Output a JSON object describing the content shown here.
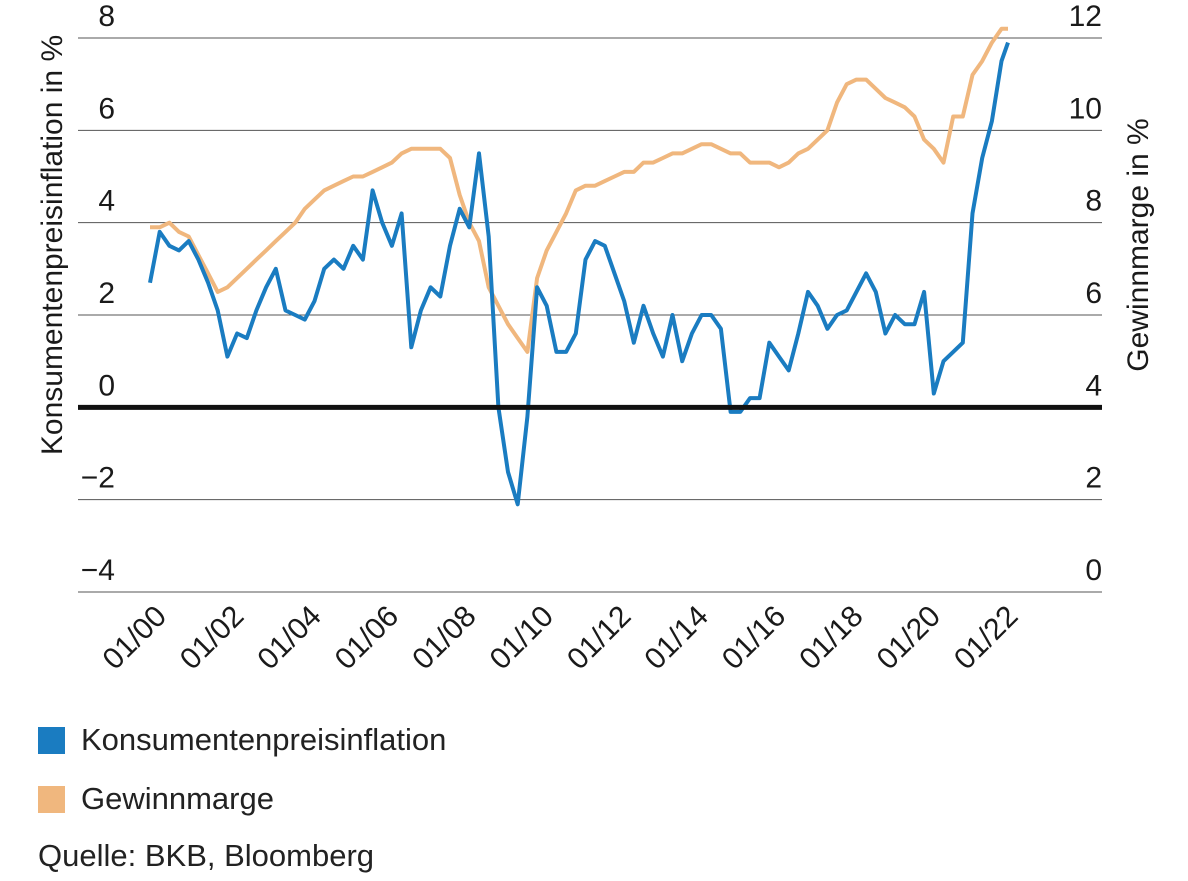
{
  "chart_data": {
    "type": "line",
    "x_tick_labels": [
      "01/00",
      "01/02",
      "01/04",
      "01/06",
      "01/08",
      "01/10",
      "01/12",
      "01/14",
      "01/16",
      "01/18",
      "01/20",
      "01/22"
    ],
    "xlim": [
      "2000-01",
      "2022-12"
    ],
    "y_left": {
      "label": "Konsumentenpreisinflation in %",
      "ticks": [
        "−4",
        "−2",
        "0",
        "2",
        "4",
        "6",
        "8"
      ],
      "ylim": [
        -4,
        8
      ]
    },
    "y_right": {
      "label": "Gewinnmarge in %",
      "ticks": [
        "0",
        "2",
        "4",
        "6",
        "8",
        "10",
        "12"
      ],
      "ylim": [
        0,
        12
      ]
    },
    "grid": "horizontal",
    "zero_line": true,
    "series": [
      {
        "name": "Konsumentenpreisinflation",
        "axis": "left",
        "color": "#1a7cc1",
        "points": [
          [
            "2000-01",
            2.7
          ],
          [
            "2000-04",
            3.8
          ],
          [
            "2000-07",
            3.5
          ],
          [
            "2000-10",
            3.4
          ],
          [
            "2001-01",
            3.6
          ],
          [
            "2001-04",
            3.2
          ],
          [
            "2001-07",
            2.7
          ],
          [
            "2001-10",
            2.1
          ],
          [
            "2002-01",
            1.1
          ],
          [
            "2002-04",
            1.6
          ],
          [
            "2002-07",
            1.5
          ],
          [
            "2002-10",
            2.1
          ],
          [
            "2003-01",
            2.6
          ],
          [
            "2003-04",
            3.0
          ],
          [
            "2003-07",
            2.1
          ],
          [
            "2003-10",
            2.0
          ],
          [
            "2004-01",
            1.9
          ],
          [
            "2004-04",
            2.3
          ],
          [
            "2004-07",
            3.0
          ],
          [
            "2004-10",
            3.2
          ],
          [
            "2005-01",
            3.0
          ],
          [
            "2005-04",
            3.5
          ],
          [
            "2005-07",
            3.2
          ],
          [
            "2005-10",
            4.7
          ],
          [
            "2006-01",
            4.0
          ],
          [
            "2006-04",
            3.5
          ],
          [
            "2006-07",
            4.2
          ],
          [
            "2006-10",
            1.3
          ],
          [
            "2007-01",
            2.1
          ],
          [
            "2007-04",
            2.6
          ],
          [
            "2007-07",
            2.4
          ],
          [
            "2007-10",
            3.5
          ],
          [
            "2008-01",
            4.3
          ],
          [
            "2008-04",
            3.9
          ],
          [
            "2008-07",
            5.5
          ],
          [
            "2008-10",
            3.7
          ],
          [
            "2009-01",
            0.0
          ],
          [
            "2009-04",
            -1.4
          ],
          [
            "2009-07",
            -2.1
          ],
          [
            "2009-10",
            -0.2
          ],
          [
            "2010-01",
            2.6
          ],
          [
            "2010-04",
            2.2
          ],
          [
            "2010-07",
            1.2
          ],
          [
            "2010-10",
            1.2
          ],
          [
            "2011-01",
            1.6
          ],
          [
            "2011-04",
            3.2
          ],
          [
            "2011-07",
            3.6
          ],
          [
            "2011-10",
            3.5
          ],
          [
            "2012-01",
            2.9
          ],
          [
            "2012-04",
            2.3
          ],
          [
            "2012-07",
            1.4
          ],
          [
            "2012-10",
            2.2
          ],
          [
            "2013-01",
            1.6
          ],
          [
            "2013-04",
            1.1
          ],
          [
            "2013-07",
            2.0
          ],
          [
            "2013-10",
            1.0
          ],
          [
            "2014-01",
            1.6
          ],
          [
            "2014-04",
            2.0
          ],
          [
            "2014-07",
            2.0
          ],
          [
            "2014-10",
            1.7
          ],
          [
            "2015-01",
            -0.1
          ],
          [
            "2015-04",
            -0.1
          ],
          [
            "2015-07",
            0.2
          ],
          [
            "2015-10",
            0.2
          ],
          [
            "2016-01",
            1.4
          ],
          [
            "2016-04",
            1.1
          ],
          [
            "2016-07",
            0.8
          ],
          [
            "2016-10",
            1.6
          ],
          [
            "2017-01",
            2.5
          ],
          [
            "2017-04",
            2.2
          ],
          [
            "2017-07",
            1.7
          ],
          [
            "2017-10",
            2.0
          ],
          [
            "2018-01",
            2.1
          ],
          [
            "2018-04",
            2.5
          ],
          [
            "2018-07",
            2.9
          ],
          [
            "2018-10",
            2.5
          ],
          [
            "2019-01",
            1.6
          ],
          [
            "2019-04",
            2.0
          ],
          [
            "2019-07",
            1.8
          ],
          [
            "2019-10",
            1.8
          ],
          [
            "2020-01",
            2.5
          ],
          [
            "2020-04",
            0.3
          ],
          [
            "2020-07",
            1.0
          ],
          [
            "2020-10",
            1.2
          ],
          [
            "2021-01",
            1.4
          ],
          [
            "2021-04",
            4.2
          ],
          [
            "2021-07",
            5.4
          ],
          [
            "2021-10",
            6.2
          ],
          [
            "2022-01",
            7.5
          ],
          [
            "2022-03",
            7.9
          ]
        ]
      },
      {
        "name": "Gewinnmarge",
        "axis": "right",
        "color": "#f0b77e",
        "points": [
          [
            "2000-01",
            7.9
          ],
          [
            "2000-04",
            7.9
          ],
          [
            "2000-07",
            8.0
          ],
          [
            "2000-10",
            7.8
          ],
          [
            "2001-01",
            7.7
          ],
          [
            "2001-04",
            7.3
          ],
          [
            "2001-07",
            6.9
          ],
          [
            "2001-10",
            6.5
          ],
          [
            "2002-01",
            6.6
          ],
          [
            "2002-04",
            6.8
          ],
          [
            "2002-07",
            7.0
          ],
          [
            "2002-10",
            7.2
          ],
          [
            "2003-01",
            7.4
          ],
          [
            "2003-04",
            7.6
          ],
          [
            "2003-07",
            7.8
          ],
          [
            "2003-10",
            8.0
          ],
          [
            "2004-01",
            8.3
          ],
          [
            "2004-04",
            8.5
          ],
          [
            "2004-07",
            8.7
          ],
          [
            "2004-10",
            8.8
          ],
          [
            "2005-01",
            8.9
          ],
          [
            "2005-04",
            9.0
          ],
          [
            "2005-07",
            9.0
          ],
          [
            "2005-10",
            9.1
          ],
          [
            "2006-01",
            9.2
          ],
          [
            "2006-04",
            9.3
          ],
          [
            "2006-07",
            9.5
          ],
          [
            "2006-10",
            9.6
          ],
          [
            "2007-01",
            9.6
          ],
          [
            "2007-04",
            9.6
          ],
          [
            "2007-07",
            9.6
          ],
          [
            "2007-10",
            9.4
          ],
          [
            "2008-01",
            8.6
          ],
          [
            "2008-04",
            8.0
          ],
          [
            "2008-07",
            7.6
          ],
          [
            "2008-10",
            6.6
          ],
          [
            "2009-01",
            6.2
          ],
          [
            "2009-04",
            5.8
          ],
          [
            "2009-07",
            5.5
          ],
          [
            "2009-10",
            5.2
          ],
          [
            "2010-01",
            6.8
          ],
          [
            "2010-04",
            7.4
          ],
          [
            "2010-07",
            7.8
          ],
          [
            "2010-10",
            8.2
          ],
          [
            "2011-01",
            8.7
          ],
          [
            "2011-04",
            8.8
          ],
          [
            "2011-07",
            8.8
          ],
          [
            "2011-10",
            8.9
          ],
          [
            "2012-01",
            9.0
          ],
          [
            "2012-04",
            9.1
          ],
          [
            "2012-07",
            9.1
          ],
          [
            "2012-10",
            9.3
          ],
          [
            "2013-01",
            9.3
          ],
          [
            "2013-04",
            9.4
          ],
          [
            "2013-07",
            9.5
          ],
          [
            "2013-10",
            9.5
          ],
          [
            "2014-01",
            9.6
          ],
          [
            "2014-04",
            9.7
          ],
          [
            "2014-07",
            9.7
          ],
          [
            "2014-10",
            9.6
          ],
          [
            "2015-01",
            9.5
          ],
          [
            "2015-04",
            9.5
          ],
          [
            "2015-07",
            9.3
          ],
          [
            "2015-10",
            9.3
          ],
          [
            "2016-01",
            9.3
          ],
          [
            "2016-04",
            9.2
          ],
          [
            "2016-07",
            9.3
          ],
          [
            "2016-10",
            9.5
          ],
          [
            "2017-01",
            9.6
          ],
          [
            "2017-04",
            9.8
          ],
          [
            "2017-07",
            10.0
          ],
          [
            "2017-10",
            10.6
          ],
          [
            "2018-01",
            11.0
          ],
          [
            "2018-04",
            11.1
          ],
          [
            "2018-07",
            11.1
          ],
          [
            "2018-10",
            10.9
          ],
          [
            "2019-01",
            10.7
          ],
          [
            "2019-04",
            10.6
          ],
          [
            "2019-07",
            10.5
          ],
          [
            "2019-10",
            10.3
          ],
          [
            "2020-01",
            9.8
          ],
          [
            "2020-04",
            9.6
          ],
          [
            "2020-07",
            9.3
          ],
          [
            "2020-10",
            10.3
          ],
          [
            "2021-01",
            10.3
          ],
          [
            "2021-04",
            11.2
          ],
          [
            "2021-07",
            11.5
          ],
          [
            "2021-10",
            11.9
          ],
          [
            "2022-01",
            12.2
          ],
          [
            "2022-03",
            12.2
          ]
        ]
      }
    ]
  },
  "legend": {
    "items": [
      {
        "label": "Konsumentenpreisinflation",
        "color": "#1a7cc1"
      },
      {
        "label": "Gewinnmarge",
        "color": "#f0b77e"
      }
    ]
  },
  "source_text": "Quelle: BKB, Bloomberg"
}
